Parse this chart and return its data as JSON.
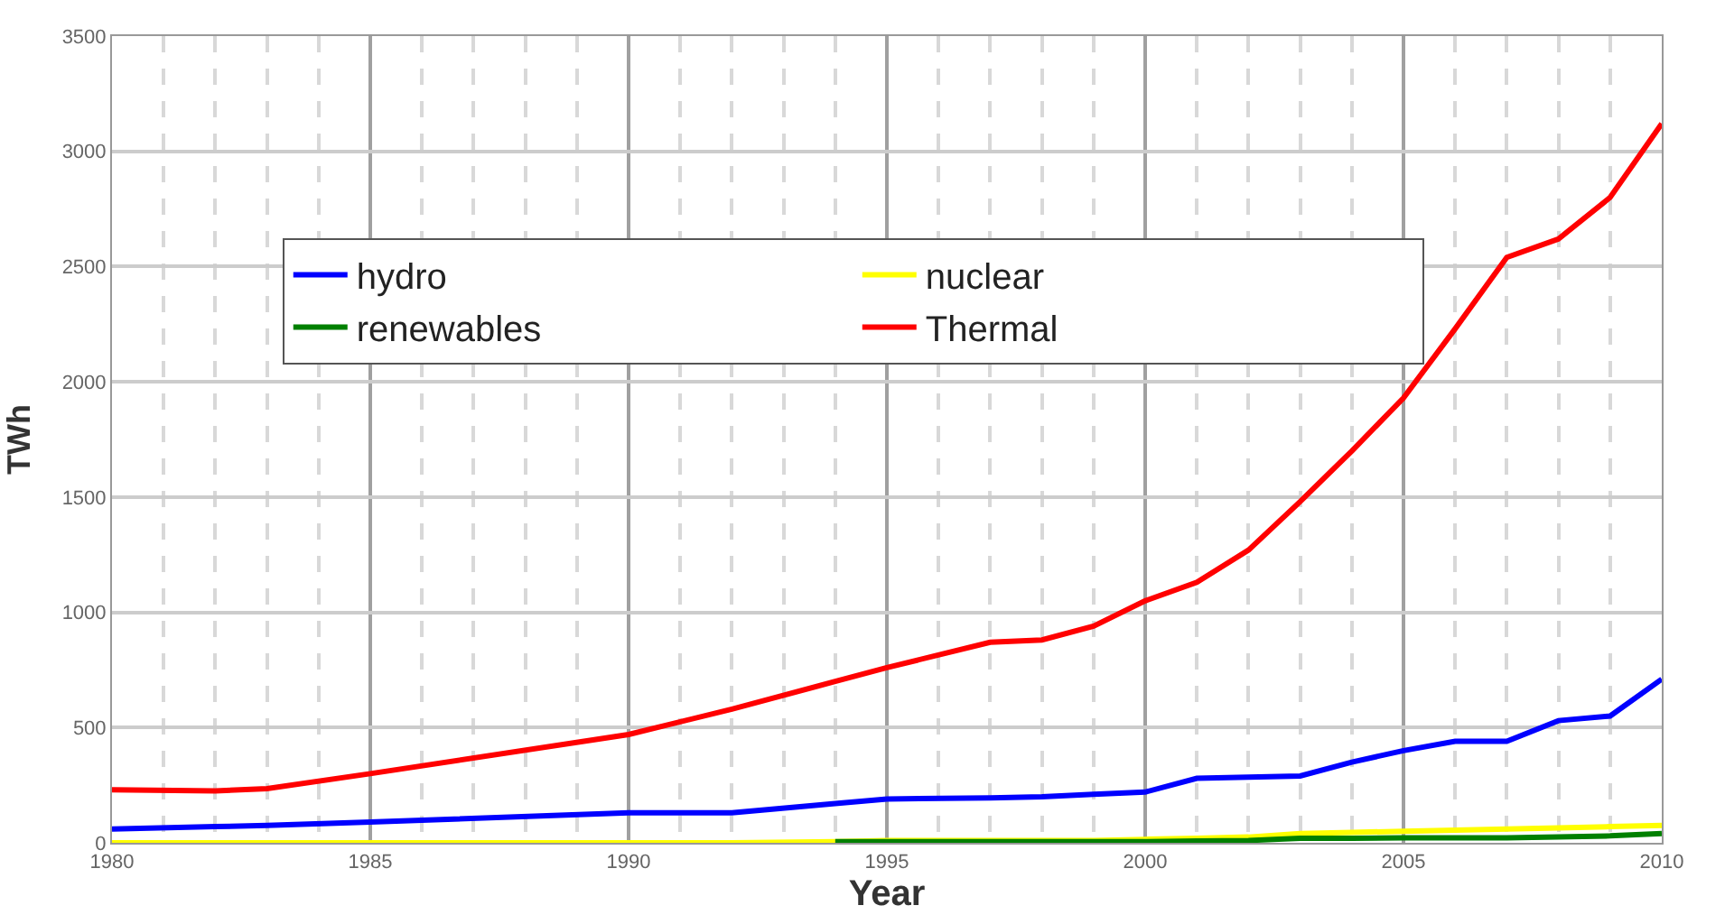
{
  "chart_data": {
    "type": "line",
    "xlabel": "Year",
    "ylabel": "TWh",
    "x": [
      1980,
      1982,
      1983,
      1985,
      1990,
      1992,
      1994,
      1995,
      1997,
      1998,
      1999,
      2000,
      2001,
      2002,
      2003,
      2004,
      2005,
      2006,
      2007,
      2008,
      2009,
      2010
    ],
    "series": [
      {
        "name": "hydro",
        "color": "#0000ff",
        "values": [
          60,
          70,
          75,
          90,
          130,
          130,
          170,
          190,
          195,
          200,
          210,
          220,
          280,
          285,
          290,
          350,
          400,
          440,
          440,
          530,
          550,
          710
        ]
      },
      {
        "name": "nuclear",
        "color": "#ffff00",
        "values": [
          0,
          0,
          0,
          0,
          0,
          0,
          5,
          10,
          10,
          10,
          10,
          15,
          20,
          25,
          40,
          45,
          50,
          55,
          60,
          65,
          70,
          75
        ]
      },
      {
        "name": "renewables",
        "color": "#008000",
        "values": [
          null,
          null,
          null,
          null,
          null,
          null,
          5,
          5,
          5,
          5,
          5,
          5,
          8,
          10,
          20,
          20,
          22,
          22,
          22,
          25,
          30,
          40
        ]
      },
      {
        "name": "Thermal",
        "color": "#ff0000",
        "values": [
          230,
          225,
          235,
          300,
          470,
          580,
          700,
          760,
          870,
          880,
          940,
          1050,
          1130,
          1270,
          1480,
          1700,
          1930,
          2230,
          2540,
          2620,
          2800,
          3120
        ]
      }
    ],
    "xlim": [
      1980,
      2010
    ],
    "xticks": [
      1980,
      1985,
      1990,
      1995,
      2000,
      2005,
      2010
    ],
    "ylim": [
      0,
      3500
    ],
    "yticks": [
      0,
      500,
      1000,
      1500,
      2000,
      2500,
      3000,
      3500
    ],
    "grid": true,
    "legend": "top left",
    "marker": "none",
    "line_style": "solid"
  }
}
